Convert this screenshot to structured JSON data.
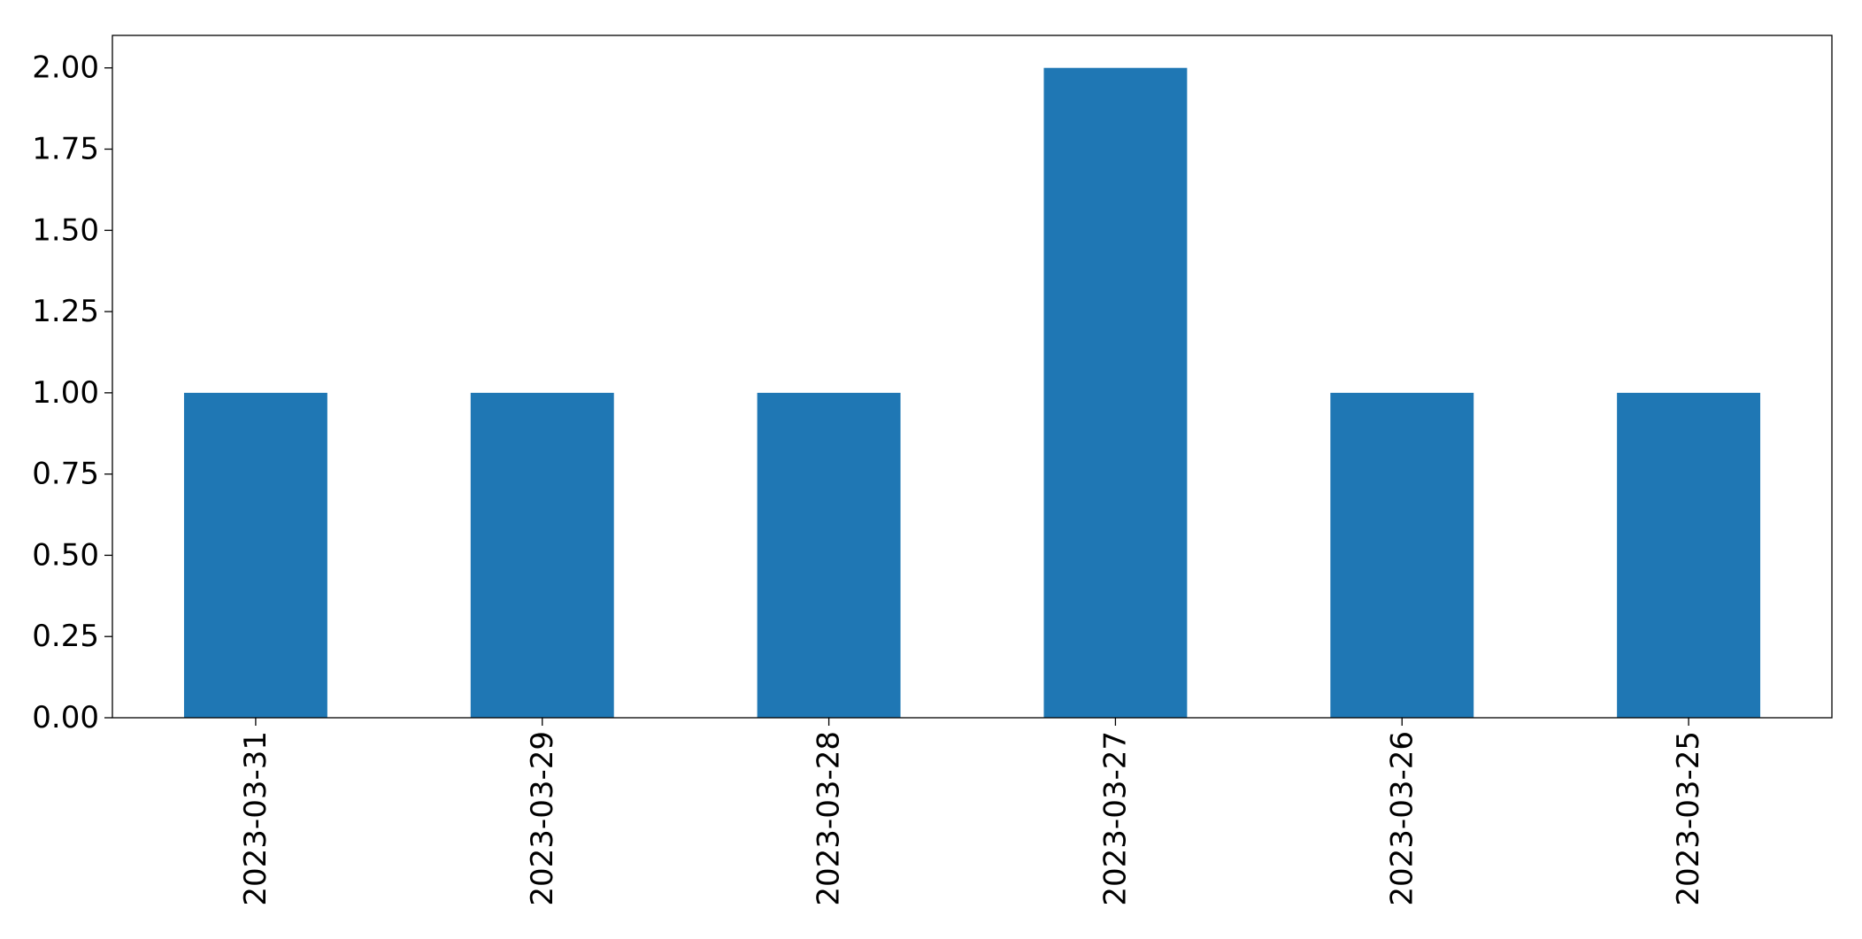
{
  "chart_data": {
    "type": "bar",
    "title": "",
    "xlabel": "",
    "ylabel": "",
    "categories": [
      "2023-03-31",
      "2023-03-29",
      "2023-03-28",
      "2023-03-27",
      "2023-03-26",
      "2023-03-25"
    ],
    "values": [
      1,
      1,
      1,
      2,
      1,
      1
    ],
    "ylim": [
      0,
      2.1
    ],
    "yticks": [
      0,
      0.25,
      0.5,
      0.75,
      1.0,
      1.25,
      1.5,
      1.75,
      2.0
    ],
    "ytick_labels": [
      "0.00",
      "0.25",
      "0.50",
      "0.75",
      "1.00",
      "1.25",
      "1.50",
      "1.75",
      "2.00"
    ],
    "x_tick_rotation": "vertical",
    "grid": false,
    "legend": "none",
    "bar_color": "#1f77b4"
  }
}
